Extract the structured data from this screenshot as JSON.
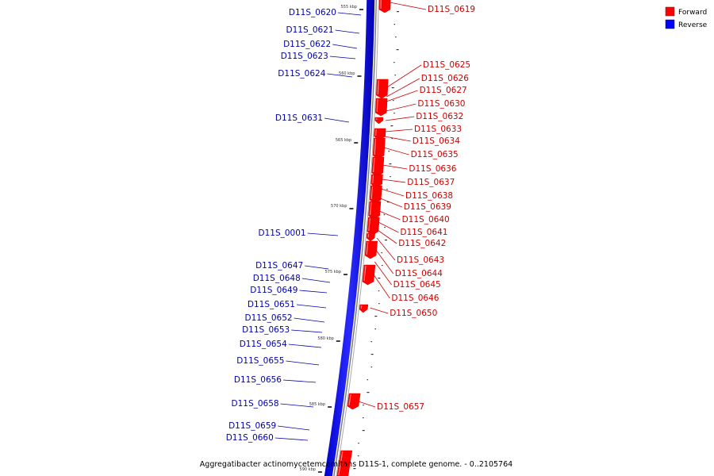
{
  "caption": "Aggregatibacter actinomycetemcomitans D11S-1, complete genome. - 0..2105764",
  "legend": [
    {
      "label": "Forward",
      "color": "#ff0000"
    },
    {
      "label": "Reverse",
      "color": "#0000ff"
    }
  ],
  "colors": {
    "forward": "#ff0000",
    "reverse": "#0000ff",
    "backbone": "#888888"
  },
  "ticks": [
    "555 kbp",
    "560 kbp",
    "565 kbp",
    "570 kbp",
    "575 kbp",
    "580 kbp",
    "585 kbp",
    "590 kbp"
  ],
  "reverse_genes": [
    "D11S_0620",
    "D11S_0621",
    "D11S_0622",
    "D11S_0623",
    "D11S_0624",
    "D11S_0631",
    "D11S_0001",
    "D11S_0647",
    "D11S_0648",
    "D11S_0649",
    "D11S_0651",
    "D11S_0652",
    "D11S_0653",
    "D11S_0654",
    "D11S_0655",
    "D11S_0656",
    "D11S_0658",
    "D11S_0659",
    "D11S_0660"
  ],
  "forward_genes": [
    "D11S_0619",
    "D11S_0625",
    "D11S_0626",
    "D11S_0627",
    "D11S_0630",
    "D11S_0632",
    "D11S_0633",
    "D11S_0634",
    "D11S_0635",
    "D11S_0636",
    "D11S_0637",
    "D11S_0638",
    "D11S_0639",
    "D11S_0640",
    "D11S_0641",
    "D11S_0642",
    "D11S_0643",
    "D11S_0644",
    "D11S_0645",
    "D11S_0646",
    "D11S_0650",
    "D11S_0657"
  ]
}
